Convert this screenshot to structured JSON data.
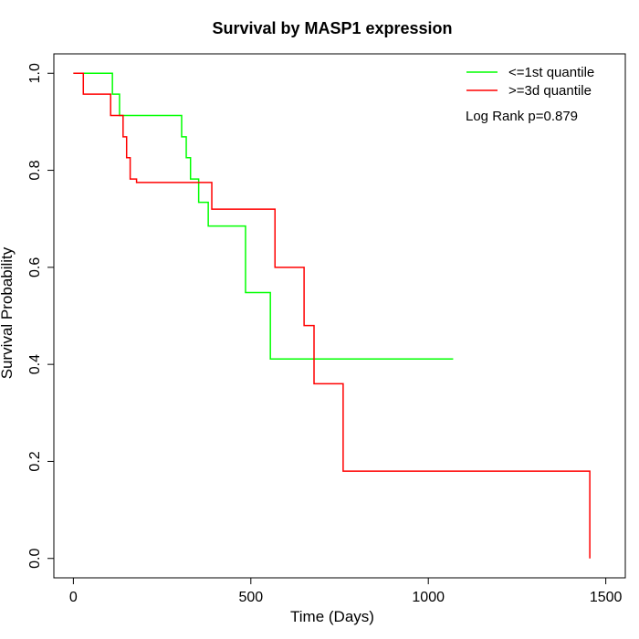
{
  "chart_data": {
    "type": "line",
    "title": "Survival by MASP1 expression",
    "xlabel": "Time (Days)",
    "ylabel": "Survival Probability",
    "xlim": [
      -55,
      1555
    ],
    "ylim": [
      -0.04,
      1.04
    ],
    "xticks": [
      0,
      500,
      1000,
      1500
    ],
    "yticks": [
      0.0,
      0.2,
      0.4,
      0.6,
      0.8,
      1.0
    ],
    "xtick_labels": [
      "0",
      "500",
      "1000",
      "1500"
    ],
    "ytick_labels": [
      "0.0",
      "0.2",
      "0.4",
      "0.6",
      "0.8",
      "1.0"
    ],
    "grid": false,
    "legend_position": "top-right",
    "annotation": "Log Rank p=0.879",
    "series": [
      {
        "name": "<=1st quantile",
        "color": "#00ff00",
        "step_x": [
          0,
          110,
          130,
          305,
          318,
          330,
          353,
          380,
          485,
          555,
          1070
        ],
        "step_y": [
          1.0,
          0.957,
          0.913,
          0.869,
          0.826,
          0.782,
          0.734,
          0.685,
          0.548,
          0.411,
          0.411
        ]
      },
      {
        "name": ">=3d quantile",
        "color": "#ff0000",
        "step_x": [
          0,
          28,
          105,
          140,
          150,
          160,
          178,
          390,
          568,
          650,
          678,
          760,
          1455,
          1455
        ],
        "step_y": [
          1.0,
          0.957,
          0.913,
          0.869,
          0.826,
          0.782,
          0.775,
          0.72,
          0.6,
          0.48,
          0.36,
          0.18,
          0.18,
          0.0
        ]
      }
    ]
  }
}
